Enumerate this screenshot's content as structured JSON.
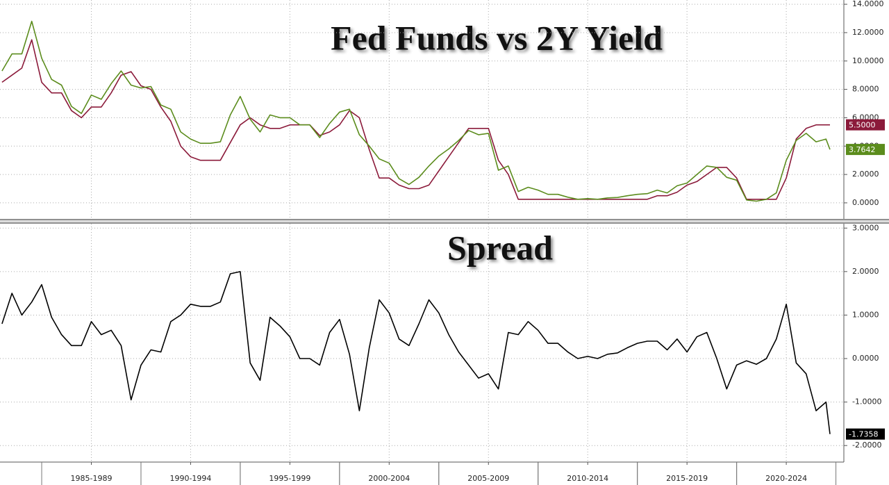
{
  "chart_data": [
    {
      "type": "line",
      "title": "Fed Funds vs 2Y Yield",
      "x": [
        1983,
        1983.5,
        1984,
        1984.5,
        1985,
        1985.5,
        1986,
        1986.5,
        1987,
        1987.5,
        1988,
        1988.5,
        1989,
        1989.5,
        1990,
        1990.5,
        1991,
        1991.5,
        1992,
        1992.5,
        1993,
        1993.5,
        1994,
        1994.5,
        1995,
        1995.5,
        1996,
        1996.5,
        1997,
        1997.5,
        1998,
        1998.5,
        1999,
        1999.5,
        2000,
        2000.5,
        2001,
        2001.5,
        2002,
        2002.5,
        2003,
        2003.5,
        2004,
        2004.5,
        2005,
        2005.5,
        2006,
        2006.5,
        2007,
        2007.5,
        2008,
        2008.5,
        2009,
        2009.5,
        2010,
        2010.5,
        2011,
        2011.5,
        2012,
        2012.5,
        2013,
        2013.5,
        2014,
        2014.5,
        2015,
        2015.5,
        2016,
        2016.5,
        2017,
        2017.5,
        2018,
        2018.5,
        2019,
        2019.5,
        2020,
        2020.5,
        2021,
        2021.5,
        2022,
        2022.5,
        2023,
        2023.5,
        2024,
        2024.5,
        2024.7
      ],
      "series": [
        {
          "color": "#8b1a3a",
          "end_label": "5.5000",
          "values": [
            8.5,
            9.0,
            9.5,
            11.5,
            8.5,
            7.75,
            7.75,
            6.5,
            6.0,
            6.75,
            6.75,
            7.75,
            9.0,
            9.25,
            8.25,
            8.0,
            6.75,
            5.75,
            4.0,
            3.25,
            3.0,
            3.0,
            3.0,
            4.25,
            5.5,
            6.0,
            5.5,
            5.25,
            5.25,
            5.5,
            5.5,
            5.5,
            4.75,
            5.0,
            5.5,
            6.5,
            6.0,
            3.75,
            1.75,
            1.75,
            1.25,
            1.0,
            1.0,
            1.25,
            2.25,
            3.25,
            4.25,
            5.25,
            5.25,
            5.25,
            3.0,
            2.0,
            0.25,
            0.25,
            0.25,
            0.25,
            0.25,
            0.25,
            0.25,
            0.25,
            0.25,
            0.25,
            0.25,
            0.25,
            0.25,
            0.25,
            0.5,
            0.5,
            0.75,
            1.25,
            1.5,
            2.0,
            2.5,
            2.5,
            1.75,
            0.25,
            0.25,
            0.25,
            0.25,
            1.75,
            4.5,
            5.25,
            5.5,
            5.5,
            5.5
          ]
        },
        {
          "color": "#5b8c1c",
          "end_label": "3.7642",
          "values": [
            9.3,
            10.5,
            10.5,
            12.8,
            10.2,
            8.7,
            8.3,
            6.8,
            6.3,
            7.6,
            7.3,
            8.4,
            9.3,
            8.3,
            8.1,
            8.2,
            6.9,
            6.6,
            5.0,
            4.5,
            4.2,
            4.2,
            4.3,
            6.2,
            7.5,
            5.9,
            5.0,
            6.2,
            6.0,
            6.0,
            5.5,
            5.5,
            4.6,
            5.6,
            6.4,
            6.6,
            4.8,
            4.0,
            3.1,
            2.8,
            1.7,
            1.3,
            1.8,
            2.6,
            3.3,
            3.8,
            4.4,
            5.1,
            4.8,
            4.9,
            2.3,
            2.6,
            0.8,
            1.1,
            0.9,
            0.6,
            0.6,
            0.4,
            0.25,
            0.3,
            0.25,
            0.35,
            0.38,
            0.5,
            0.6,
            0.65,
            0.9,
            0.7,
            1.2,
            1.4,
            2.0,
            2.6,
            2.5,
            1.8,
            1.6,
            0.2,
            0.12,
            0.25,
            0.7,
            3.0,
            4.4,
            4.9,
            4.3,
            4.5,
            3.7642
          ]
        }
      ],
      "xlim": [
        1982.9,
        2025.4
      ],
      "ylim": [
        -1.13,
        14.3
      ],
      "yticks": [
        {
          "value": 0,
          "label": "0.0000"
        },
        {
          "value": 2,
          "label": "2.0000"
        },
        {
          "value": 4,
          "label": "4.0000"
        },
        {
          "value": 6,
          "label": "6.0000"
        },
        {
          "value": 8,
          "label": "8.0000"
        },
        {
          "value": 10,
          "label": "10.0000"
        },
        {
          "value": 12,
          "label": "12.0000"
        },
        {
          "value": 14,
          "label": "14.0000"
        }
      ],
      "grid": true
    },
    {
      "type": "line",
      "title": "Spread",
      "x": [
        1983,
        1983.5,
        1984,
        1984.5,
        1985,
        1985.5,
        1986,
        1986.5,
        1987,
        1987.5,
        1988,
        1988.5,
        1989,
        1989.5,
        1990,
        1990.5,
        1991,
        1991.5,
        1992,
        1992.5,
        1993,
        1993.5,
        1994,
        1994.5,
        1995,
        1995.5,
        1996,
        1996.5,
        1997,
        1997.5,
        1998,
        1998.5,
        1999,
        1999.5,
        2000,
        2000.5,
        2001,
        2001.5,
        2002,
        2002.5,
        2003,
        2003.5,
        2004,
        2004.5,
        2005,
        2005.5,
        2006,
        2006.5,
        2007,
        2007.5,
        2008,
        2008.5,
        2009,
        2009.5,
        2010,
        2010.5,
        2011,
        2011.5,
        2012,
        2012.5,
        2013,
        2013.5,
        2014,
        2014.5,
        2015,
        2015.5,
        2016,
        2016.5,
        2017,
        2017.5,
        2018,
        2018.5,
        2019,
        2019.5,
        2020,
        2020.5,
        2021,
        2021.5,
        2022,
        2022.5,
        2023,
        2023.5,
        2024,
        2024.5,
        2024.7
      ],
      "series": [
        {
          "color": "#000000",
          "end_label": "-1.7358",
          "values": [
            0.8,
            1.5,
            1.0,
            1.3,
            1.7,
            0.95,
            0.55,
            0.3,
            0.3,
            0.85,
            0.55,
            0.65,
            0.3,
            -0.95,
            -0.15,
            0.2,
            0.15,
            0.85,
            1.0,
            1.25,
            1.2,
            1.2,
            1.3,
            1.95,
            2.0,
            -0.1,
            -0.5,
            0.95,
            0.75,
            0.5,
            0.0,
            0.0,
            -0.15,
            0.6,
            0.9,
            0.1,
            -1.2,
            0.25,
            1.35,
            1.05,
            0.45,
            0.3,
            0.8,
            1.35,
            1.05,
            0.55,
            0.15,
            -0.15,
            -0.45,
            -0.35,
            -0.7,
            0.6,
            0.55,
            0.85,
            0.65,
            0.35,
            0.35,
            0.15,
            0.0,
            0.05,
            0.0,
            0.1,
            0.13,
            0.25,
            0.35,
            0.4,
            0.4,
            0.2,
            0.45,
            0.15,
            0.5,
            0.6,
            0.0,
            -0.7,
            -0.15,
            -0.05,
            -0.13,
            0.0,
            0.45,
            1.25,
            -0.1,
            -0.35,
            -1.2,
            -1.0,
            -1.7358
          ]
        }
      ],
      "xlim": [
        1982.9,
        2025.4
      ],
      "ylim": [
        -2.38,
        3.1
      ],
      "yticks": [
        {
          "value": -2,
          "label": "-2.0000"
        },
        {
          "value": -1,
          "label": "-1.0000"
        },
        {
          "value": 0,
          "label": "0.0000"
        },
        {
          "value": 1,
          "label": "1.0000"
        },
        {
          "value": 2,
          "label": "2.0000"
        },
        {
          "value": 3,
          "label": "3.0000"
        }
      ],
      "xticks": [
        {
          "value": 1987.5,
          "label": "1985-1989"
        },
        {
          "value": 1992.5,
          "label": "1990-1994"
        },
        {
          "value": 1997.5,
          "label": "1995-1999"
        },
        {
          "value": 2002.5,
          "label": "2000-2004"
        },
        {
          "value": 2007.5,
          "label": "2005-2009"
        },
        {
          "value": 2012.5,
          "label": "2010-2014"
        },
        {
          "value": 2017.5,
          "label": "2015-2019"
        },
        {
          "value": 2022.5,
          "label": "2020-2024"
        }
      ],
      "grid": true
    }
  ]
}
